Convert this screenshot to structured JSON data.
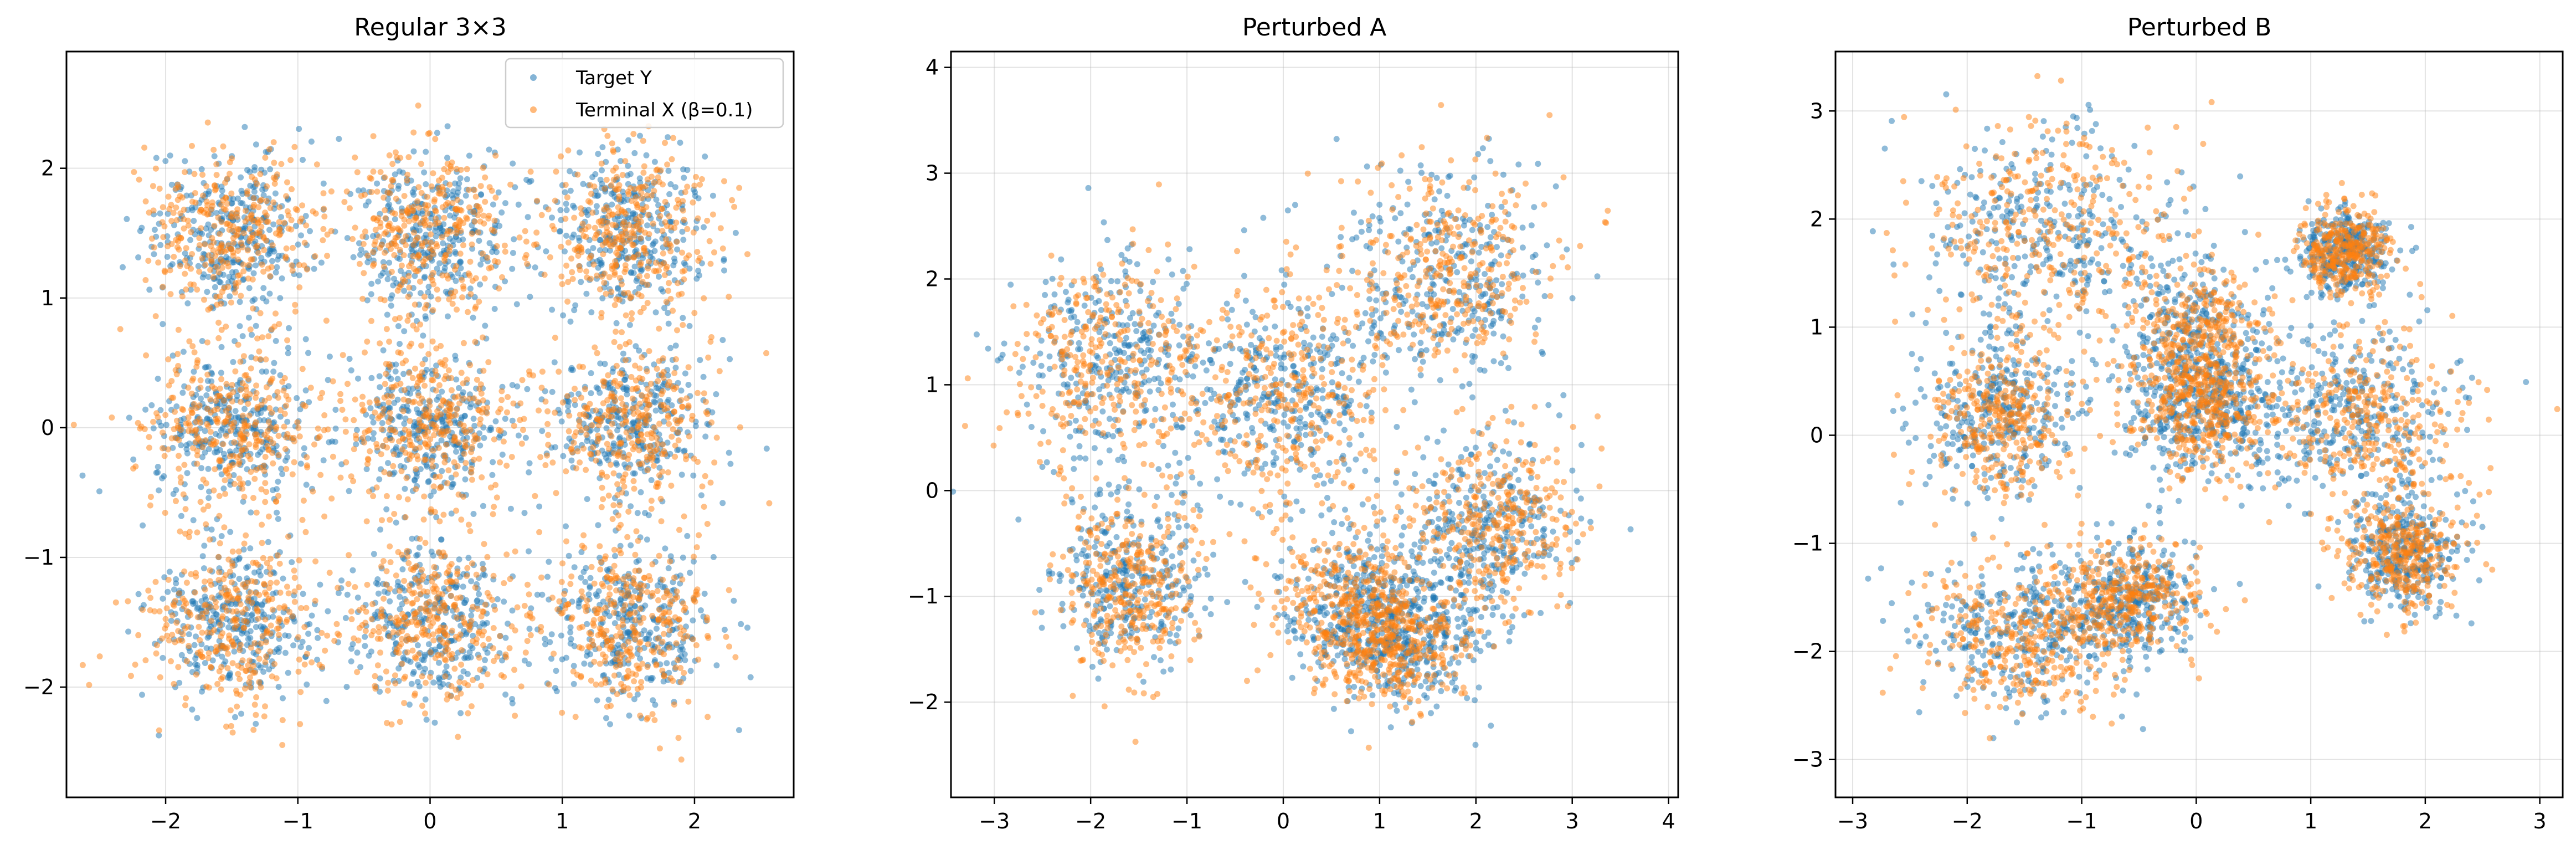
{
  "colors": {
    "target": "#1f77b4",
    "terminal": "#ff7f0e",
    "grid": "#b0b0b0",
    "axes": "#000000"
  },
  "legend": {
    "target_label": "Target Y",
    "terminal_label": "Terminal X (β=0.1)",
    "placement": "upper-right"
  },
  "chart_data": [
    {
      "type": "scatter",
      "title": "Regular 3×3",
      "xlabel": "",
      "ylabel": "",
      "xlim": [
        -2.75,
        2.75
      ],
      "ylim": [
        -2.85,
        2.9
      ],
      "xticks": [
        -2,
        -1,
        0,
        1,
        2
      ],
      "yticks": [
        -2,
        -1,
        0,
        1,
        2
      ],
      "xtick_labels": [
        "−2",
        "−1",
        "0",
        "1",
        "2"
      ],
      "ytick_labels": [
        "−2",
        "−1",
        "0",
        "1",
        "2"
      ],
      "grid": true,
      "legend": true,
      "series": [
        {
          "name": "Target Y",
          "clusters": [
            {
              "cx": -1.5,
              "cy": 1.5,
              "sx": 0.3,
              "sy": 0.3
            },
            {
              "cx": 0,
              "cy": 1.5,
              "sx": 0.3,
              "sy": 0.3
            },
            {
              "cx": 1.5,
              "cy": 1.5,
              "sx": 0.3,
              "sy": 0.3
            },
            {
              "cx": -1.5,
              "cy": 0,
              "sx": 0.3,
              "sy": 0.3
            },
            {
              "cx": 0,
              "cy": 0,
              "sx": 0.3,
              "sy": 0.3
            },
            {
              "cx": 1.5,
              "cy": 0,
              "sx": 0.3,
              "sy": 0.3
            },
            {
              "cx": -1.5,
              "cy": -1.5,
              "sx": 0.3,
              "sy": 0.3
            },
            {
              "cx": 0,
              "cy": -1.5,
              "sx": 0.3,
              "sy": 0.3
            },
            {
              "cx": 1.5,
              "cy": -1.5,
              "sx": 0.3,
              "sy": 0.3
            }
          ]
        },
        {
          "name": "Terminal X (β=0.1)",
          "clusters": [
            {
              "cx": -1.5,
              "cy": 1.5,
              "sx": 0.33,
              "sy": 0.33
            },
            {
              "cx": 0,
              "cy": 1.5,
              "sx": 0.33,
              "sy": 0.33
            },
            {
              "cx": 1.5,
              "cy": 1.5,
              "sx": 0.33,
              "sy": 0.33
            },
            {
              "cx": -1.5,
              "cy": 0,
              "sx": 0.33,
              "sy": 0.33
            },
            {
              "cx": 0,
              "cy": 0,
              "sx": 0.33,
              "sy": 0.33
            },
            {
              "cx": 1.5,
              "cy": 0,
              "sx": 0.33,
              "sy": 0.33
            },
            {
              "cx": -1.5,
              "cy": -1.5,
              "sx": 0.33,
              "sy": 0.33
            },
            {
              "cx": 0,
              "cy": -1.5,
              "sx": 0.33,
              "sy": 0.33
            },
            {
              "cx": 1.5,
              "cy": -1.5,
              "sx": 0.33,
              "sy": 0.33
            }
          ]
        }
      ]
    },
    {
      "type": "scatter",
      "title": "Perturbed A",
      "xlabel": "",
      "ylabel": "",
      "xlim": [
        -3.45,
        4.1
      ],
      "ylim": [
        -2.9,
        4.15
      ],
      "xticks": [
        -3,
        -2,
        -1,
        0,
        1,
        2,
        3,
        4
      ],
      "yticks": [
        -2,
        -1,
        0,
        1,
        2,
        3,
        4
      ],
      "xtick_labels": [
        "−3",
        "−2",
        "−1",
        "0",
        "1",
        "2",
        "3",
        "4"
      ],
      "ytick_labels": [
        "−2",
        "−1",
        "0",
        "1",
        "2",
        "3",
        "4"
      ],
      "grid": true,
      "legend": false,
      "series": [
        {
          "name": "Target Y",
          "clusters": [
            {
              "cx": -1.8,
              "cy": 1.2,
              "sx": 0.5,
              "sy": 0.45
            },
            {
              "cx": 0.0,
              "cy": 0.9,
              "sx": 0.5,
              "sy": 0.5
            },
            {
              "cx": 1.7,
              "cy": 2.0,
              "sx": 0.55,
              "sy": 0.5
            },
            {
              "cx": -1.6,
              "cy": -0.8,
              "sx": 0.4,
              "sy": 0.4
            },
            {
              "cx": 0.8,
              "cy": -1.1,
              "sx": 0.45,
              "sy": 0.35
            },
            {
              "cx": 2.1,
              "cy": -0.3,
              "sx": 0.45,
              "sy": 0.45
            },
            {
              "cx": 1.3,
              "cy": -1.4,
              "sx": 0.4,
              "sy": 0.35
            }
          ]
        },
        {
          "name": "Terminal X (β=0.1)",
          "clusters": [
            {
              "cx": -1.8,
              "cy": 1.2,
              "sx": 0.55,
              "sy": 0.5
            },
            {
              "cx": 0.0,
              "cy": 0.9,
              "sx": 0.5,
              "sy": 0.55
            },
            {
              "cx": 1.7,
              "cy": 2.1,
              "sx": 0.55,
              "sy": 0.5
            },
            {
              "cx": -1.6,
              "cy": -0.9,
              "sx": 0.35,
              "sy": 0.4
            },
            {
              "cx": 0.7,
              "cy": -1.1,
              "sx": 0.4,
              "sy": 0.35
            },
            {
              "cx": 2.2,
              "cy": -0.3,
              "sx": 0.45,
              "sy": 0.45
            },
            {
              "cx": 1.2,
              "cy": -1.4,
              "sx": 0.35,
              "sy": 0.3
            }
          ]
        }
      ]
    },
    {
      "type": "scatter",
      "title": "Perturbed B",
      "xlabel": "",
      "ylabel": "",
      "xlim": [
        -3.15,
        3.2
      ],
      "ylim": [
        -3.35,
        3.55
      ],
      "xticks": [
        -3,
        -2,
        -1,
        0,
        1,
        2,
        3
      ],
      "yticks": [
        -3,
        -2,
        -1,
        0,
        1,
        2,
        3
      ],
      "xtick_labels": [
        "−3",
        "−2",
        "−1",
        "0",
        "1",
        "2",
        "3"
      ],
      "ytick_labels": [
        "−3",
        "−2",
        "−1",
        "0",
        "1",
        "2",
        "3"
      ],
      "grid": true,
      "legend": false,
      "series": [
        {
          "name": "Target Y",
          "clusters": [
            {
              "cx": -1.3,
              "cy": 1.9,
              "sx": 0.55,
              "sy": 0.45
            },
            {
              "cx": 1.3,
              "cy": 1.7,
              "sx": 0.2,
              "sy": 0.2
            },
            {
              "cx": -1.7,
              "cy": 0.2,
              "sx": 0.35,
              "sy": 0.35
            },
            {
              "cx": 0.0,
              "cy": 0.8,
              "sx": 0.3,
              "sy": 0.4
            },
            {
              "cx": 0.1,
              "cy": 0.2,
              "sx": 0.35,
              "sy": 0.3
            },
            {
              "cx": 1.4,
              "cy": 0.2,
              "sx": 0.45,
              "sy": 0.4
            },
            {
              "cx": 1.8,
              "cy": -1.1,
              "sx": 0.25,
              "sy": 0.25
            },
            {
              "cx": -1.5,
              "cy": -1.8,
              "sx": 0.45,
              "sy": 0.35
            },
            {
              "cx": -0.6,
              "cy": -1.5,
              "sx": 0.3,
              "sy": 0.25
            }
          ]
        },
        {
          "name": "Terminal X (β=0.1)",
          "clusters": [
            {
              "cx": -1.3,
              "cy": 1.9,
              "sx": 0.6,
              "sy": 0.5
            },
            {
              "cx": 1.3,
              "cy": 1.7,
              "sx": 0.2,
              "sy": 0.2
            },
            {
              "cx": -1.7,
              "cy": 0.2,
              "sx": 0.3,
              "sy": 0.35
            },
            {
              "cx": 0.0,
              "cy": 0.9,
              "sx": 0.3,
              "sy": 0.35
            },
            {
              "cx": 0.1,
              "cy": 0.2,
              "sx": 0.3,
              "sy": 0.3
            },
            {
              "cx": 1.5,
              "cy": 0.1,
              "sx": 0.45,
              "sy": 0.4
            },
            {
              "cx": 1.8,
              "cy": -1.1,
              "sx": 0.25,
              "sy": 0.25
            },
            {
              "cx": -1.5,
              "cy": -1.9,
              "sx": 0.45,
              "sy": 0.35
            },
            {
              "cx": -0.6,
              "cy": -1.5,
              "sx": 0.3,
              "sy": 0.25
            }
          ]
        }
      ]
    }
  ]
}
